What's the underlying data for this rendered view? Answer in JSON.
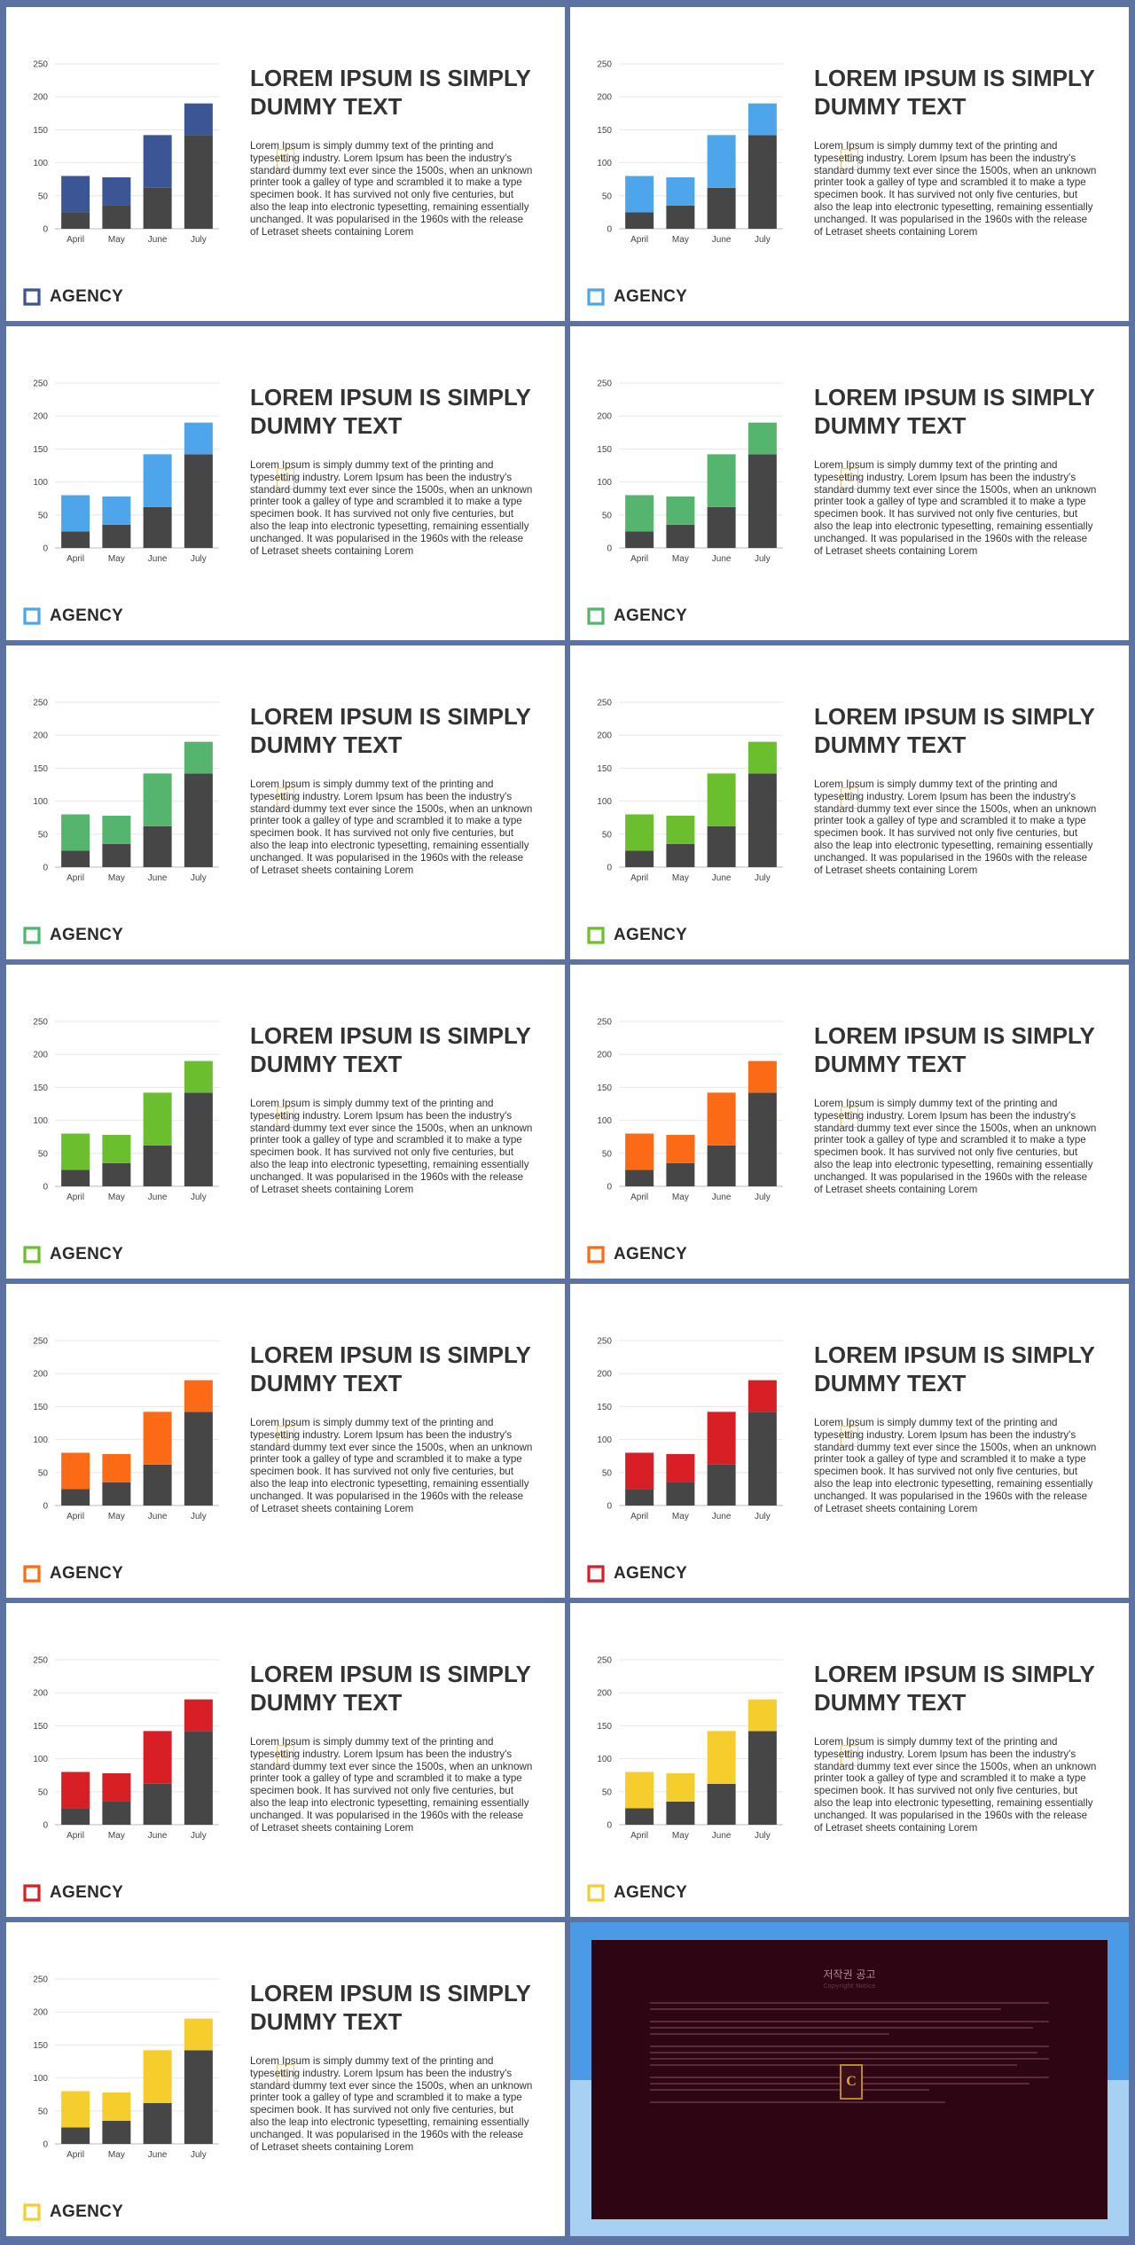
{
  "slide_text": {
    "title": "LOREM IPSUM IS SIMPLY DUMMY TEXT",
    "body": "Lorem Ipsum is simply dummy text of the printing and typesetting industry. Lorem Ipsum has been the industry's standard dummy text ever since the 1500s, when an unknown printer took a galley of type and scrambled it to make a type specimen book. It has survived not only five centuries, but also the leap into electronic typesetting, remaining essentially unchanged. It was popularised in the 1960s with the release of Letraset sheets containing Lorem",
    "logo": "AGENCY"
  },
  "colors": {
    "base_bar": "#464646",
    "gridline": "#e8e8e8",
    "axis_text": "#444444",
    "background": "#5b72a3",
    "accents": [
      "#3b5595",
      "#4da6ea",
      "#4da6ea",
      "#55b56f",
      "#55b56f",
      "#6bbf2e",
      "#6bbf2e",
      "#fd6a15",
      "#fd6a15",
      "#d81f26",
      "#d81f26",
      "#f5cd2c",
      "#f5cd2c"
    ]
  },
  "icons": {
    "logo": "bracket-square-icon",
    "watermark": "c-emblem-icon"
  },
  "chart_data": {
    "type": "bar",
    "stacked": true,
    "categories": [
      "April",
      "May",
      "June",
      "July"
    ],
    "series": [
      {
        "values": [
          25,
          35,
          62,
          142
        ]
      },
      {
        "values": [
          55,
          43,
          80,
          48
        ]
      }
    ],
    "ylim": [
      0,
      250
    ],
    "yticks": [
      0,
      50,
      100,
      150,
      200,
      250
    ],
    "grid": true
  },
  "notice": {
    "title": "저작권 공고",
    "subtitle": "Copyright Notice"
  }
}
